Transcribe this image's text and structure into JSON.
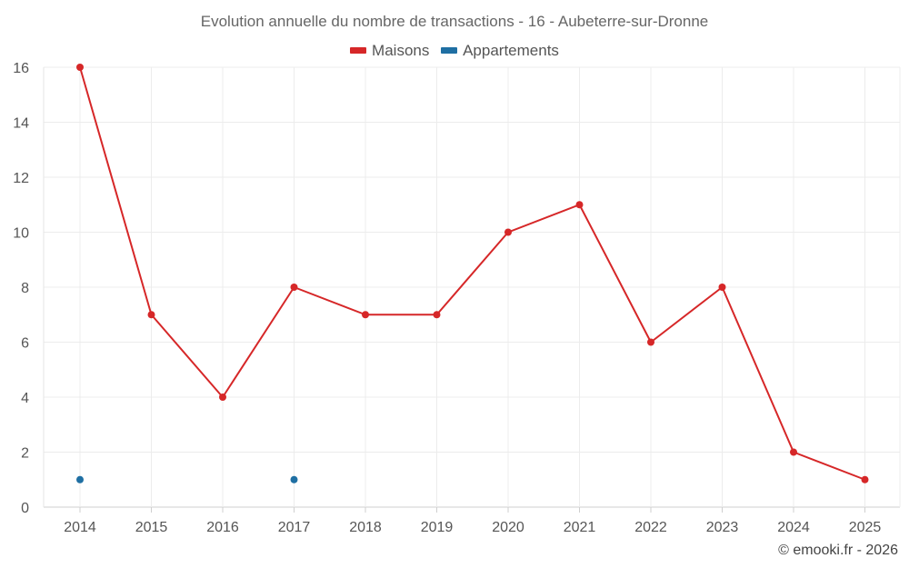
{
  "chart_data": {
    "type": "line",
    "title": "Evolution annuelle du nombre de transactions - 16 - Aubeterre-sur-Dronne",
    "categories": [
      "2014",
      "2015",
      "2016",
      "2017",
      "2018",
      "2019",
      "2020",
      "2021",
      "2022",
      "2023",
      "2024",
      "2025"
    ],
    "series": [
      {
        "name": "Maisons",
        "color": "#d62728",
        "values": [
          16,
          7,
          4,
          8,
          7,
          7,
          10,
          11,
          6,
          8,
          2,
          1
        ]
      },
      {
        "name": "Appartements",
        "color": "#1f6fa3",
        "values": [
          1,
          null,
          null,
          1,
          null,
          null,
          null,
          null,
          null,
          null,
          null,
          null
        ]
      }
    ],
    "yticks": [
      "0",
      "2",
      "4",
      "6",
      "8",
      "10",
      "12",
      "14",
      "16"
    ],
    "ylim": [
      0,
      16
    ],
    "grid": true,
    "legend_position": "top-center"
  },
  "footer": {
    "copyright": "© emooki.fr - 2026"
  }
}
